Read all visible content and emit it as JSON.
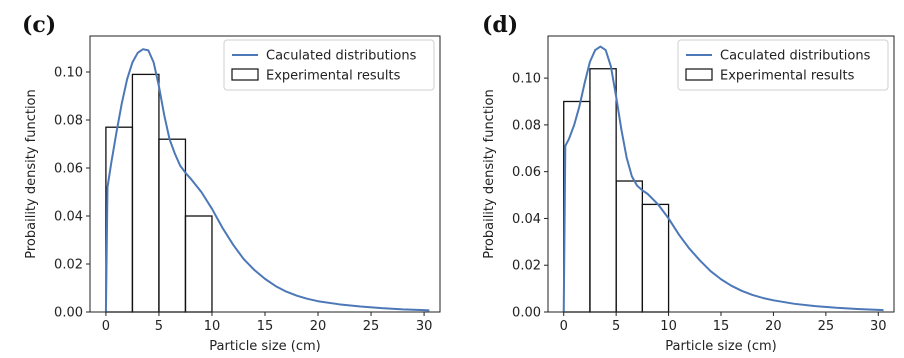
{
  "chart_data": [
    {
      "panel_label": "(c)",
      "type": "line+histogram",
      "xlabel": "Particle size (cm)",
      "ylabel": "Probaility density function",
      "xlim": [
        -1.5,
        31.5
      ],
      "ylim": [
        0,
        0.115
      ],
      "xticks": [
        0,
        5,
        10,
        15,
        20,
        25,
        30
      ],
      "yticks": [
        0.0,
        0.02,
        0.04,
        0.06,
        0.08,
        0.1
      ],
      "ytick_labels": [
        "0.00",
        "0.02",
        "0.04",
        "0.06",
        "0.08",
        "0.10"
      ],
      "legend": {
        "position": "top-right",
        "entries": [
          "Caculated distributions",
          "Experimental results"
        ]
      },
      "series": [
        {
          "name": "Caculated distributions",
          "kind": "line",
          "color": "#4c78b8",
          "x": [
            0,
            0.15,
            0.5,
            1,
            1.5,
            2,
            2.5,
            3,
            3.5,
            4,
            4.5,
            5,
            5.5,
            6,
            6.5,
            7,
            7.5,
            8,
            9,
            10,
            11,
            12,
            13,
            14,
            15,
            16,
            17,
            18,
            19,
            20,
            22,
            24,
            26,
            28,
            30,
            30.5
          ],
          "y": [
            0.0,
            0.052,
            0.062,
            0.075,
            0.087,
            0.097,
            0.104,
            0.108,
            0.1095,
            0.109,
            0.104,
            0.094,
            0.082,
            0.072,
            0.066,
            0.061,
            0.058,
            0.0555,
            0.05,
            0.043,
            0.035,
            0.028,
            0.022,
            0.0175,
            0.0138,
            0.0108,
            0.0085,
            0.0068,
            0.0055,
            0.0045,
            0.0032,
            0.0023,
            0.0016,
            0.0011,
            0.0008,
            0.0007
          ]
        },
        {
          "name": "Experimental results",
          "kind": "histogram",
          "color": "#111111",
          "bins": [
            [
              0,
              2.5
            ],
            [
              2.5,
              5
            ],
            [
              5,
              7.5
            ],
            [
              7.5,
              10
            ]
          ],
          "values": [
            0.077,
            0.099,
            0.072,
            0.04
          ]
        }
      ]
    },
    {
      "panel_label": "(d)",
      "type": "line+histogram",
      "xlabel": "Particle size (cm)",
      "ylabel": "Probaility density function",
      "xlim": [
        -1.5,
        31.5
      ],
      "ylim": [
        0,
        0.118
      ],
      "xticks": [
        0,
        5,
        10,
        15,
        20,
        25,
        30
      ],
      "yticks": [
        0.0,
        0.02,
        0.04,
        0.06,
        0.08,
        0.1
      ],
      "ytick_labels": [
        "0.00",
        "0.02",
        "0.04",
        "0.06",
        "0.08",
        "0.10"
      ],
      "legend": {
        "position": "top-right",
        "entries": [
          "Caculated distributions",
          "Experimental results"
        ]
      },
      "series": [
        {
          "name": "Caculated distributions",
          "kind": "line",
          "color": "#4c78b8",
          "x": [
            0,
            0.15,
            0.5,
            1,
            1.5,
            2,
            2.5,
            3,
            3.5,
            4,
            4.5,
            5,
            5.5,
            6,
            6.5,
            7,
            7.5,
            8,
            9,
            10,
            11,
            12,
            13,
            14,
            15,
            16,
            17,
            18,
            19,
            20,
            22,
            24,
            26,
            28,
            30,
            30.5
          ],
          "y": [
            0.0,
            0.071,
            0.074,
            0.08,
            0.088,
            0.098,
            0.107,
            0.112,
            0.1135,
            0.112,
            0.105,
            0.092,
            0.078,
            0.066,
            0.058,
            0.054,
            0.052,
            0.0505,
            0.046,
            0.04,
            0.033,
            0.027,
            0.022,
            0.0175,
            0.014,
            0.0112,
            0.009,
            0.0073,
            0.006,
            0.005,
            0.0035,
            0.0025,
            0.0018,
            0.0013,
            0.0009,
            0.0008
          ]
        },
        {
          "name": "Experimental results",
          "kind": "histogram",
          "color": "#111111",
          "bins": [
            [
              0,
              2.5
            ],
            [
              2.5,
              5
            ],
            [
              5,
              7.5
            ],
            [
              7.5,
              10
            ]
          ],
          "values": [
            0.09,
            0.104,
            0.056,
            0.046
          ]
        }
      ]
    }
  ]
}
